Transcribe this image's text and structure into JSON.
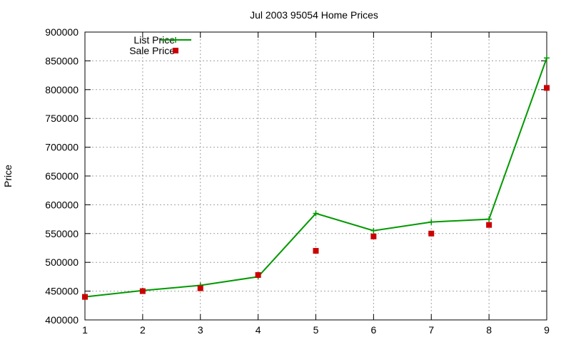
{
  "chart_data": {
    "type": "line",
    "title": "Jul 2003 95054 Home Prices",
    "xlabel": "",
    "ylabel": "Price",
    "x": [
      1,
      2,
      3,
      4,
      5,
      6,
      7,
      8,
      9
    ],
    "xlim": [
      1,
      9
    ],
    "ylim": [
      400000,
      900000
    ],
    "xticks": [
      "1",
      "2",
      "3",
      "4",
      "5",
      "6",
      "7",
      "8",
      "9"
    ],
    "yticks": [
      "400000",
      "450000",
      "500000",
      "550000",
      "600000",
      "650000",
      "700000",
      "750000",
      "800000",
      "850000",
      "900000"
    ],
    "grid": true,
    "legend_position": "top-left",
    "series": [
      {
        "name": "List Price",
        "style": "line+cross",
        "color": "#009900",
        "values": [
          440000,
          451000,
          460000,
          475000,
          585000,
          555000,
          570000,
          575000,
          855000
        ]
      },
      {
        "name": "Sale Price",
        "style": "square-points",
        "color": "#cc0000",
        "values": [
          440000,
          450000,
          455000,
          478000,
          520000,
          545000,
          550000,
          565000,
          803000
        ]
      }
    ]
  }
}
